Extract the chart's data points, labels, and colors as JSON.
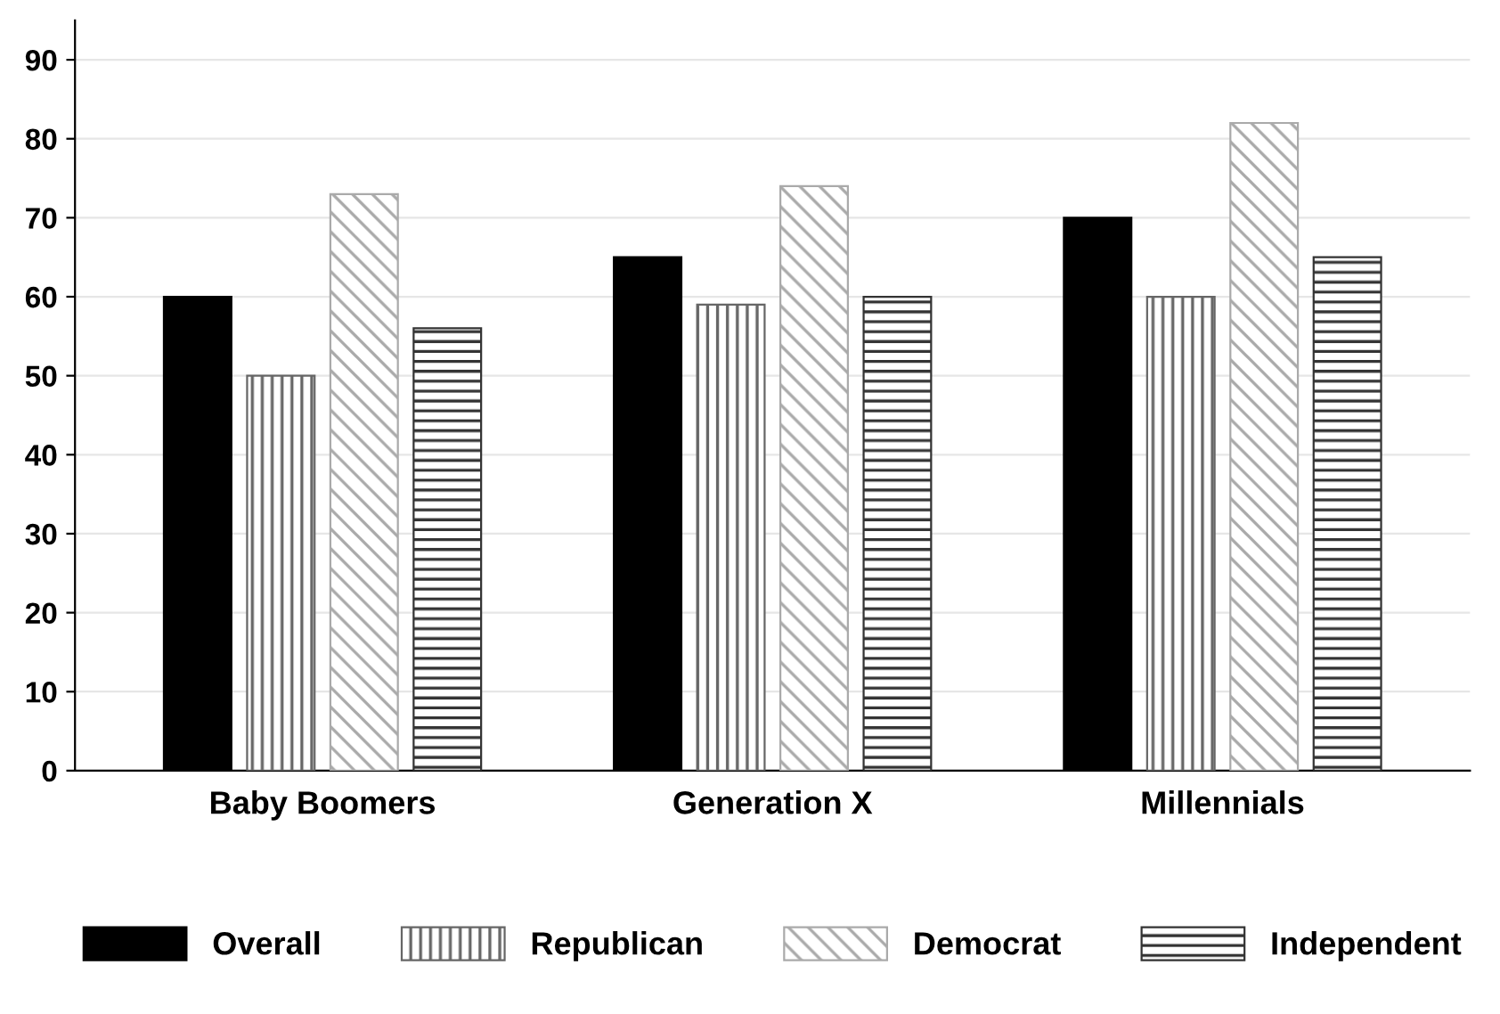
{
  "chart_data": {
    "type": "bar",
    "categories": [
      "Baby Boomers",
      "Generation X",
      "Millennials"
    ],
    "series": [
      {
        "name": "Overall",
        "color": "#000000",
        "values": [
          60,
          65,
          70
        ]
      },
      {
        "name": "Republican",
        "color": "#666666",
        "values": [
          50,
          59,
          60
        ]
      },
      {
        "name": "Democrat",
        "color": "#aaaaaa",
        "values": [
          73,
          74,
          82
        ]
      },
      {
        "name": "Independent",
        "color": "#333333",
        "values": [
          56,
          60,
          65
        ]
      }
    ],
    "ylim": [
      0,
      95
    ],
    "yticks": [
      0,
      10,
      20,
      30,
      40,
      50,
      60,
      70,
      80,
      90
    ],
    "grid": "y",
    "legend": "bottom"
  }
}
